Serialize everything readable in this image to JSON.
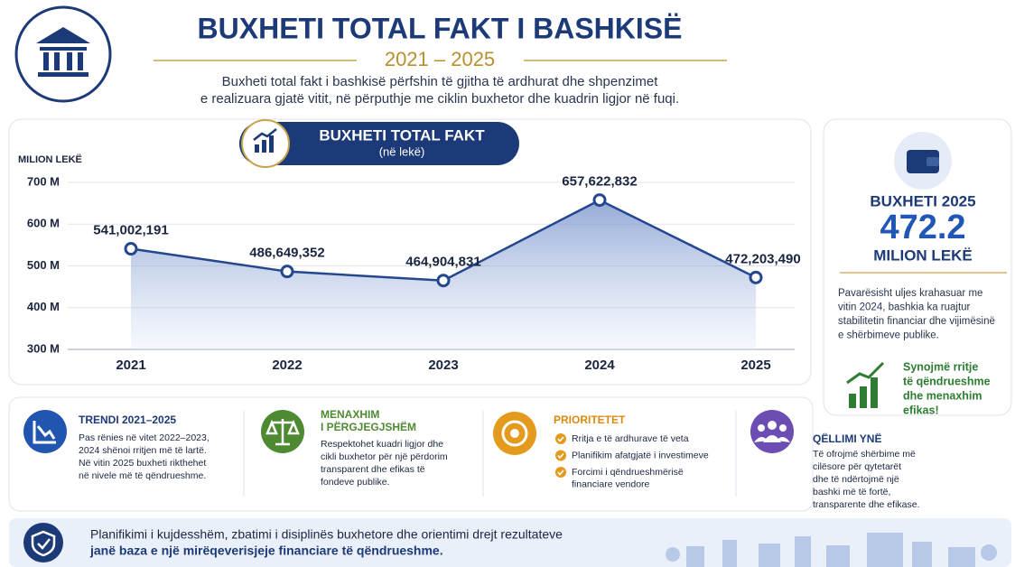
{
  "header": {
    "title": "BUXHETI TOTAL FAKT I BASHKISË",
    "years": "2021 – 2025",
    "description": [
      "Buxheti total fakt i bashkisë përfshin të gjitha të ardhurat dhe shpenzimet",
      "e realizuara gjatë vitit, në përputhje me ciklin buxhetor dhe kuadrin ligjor në fuqi."
    ]
  },
  "chart_data": {
    "type": "line",
    "title": "BUXHETI TOTAL FAKT",
    "subtitle": "(në lekë)",
    "y_label": "MILION LEKË",
    "categories": [
      "2021",
      "2022",
      "2023",
      "2024",
      "2025"
    ],
    "values": [
      541002191,
      486649352,
      464904831,
      657622832,
      472203490
    ],
    "value_labels": [
      "541,002,191",
      "486,649,352",
      "464,904,831",
      "657,622,832",
      "472,203,490"
    ],
    "color": "#24478f",
    "ylim": [
      300000000,
      700000000
    ],
    "yticks": [
      {
        "value": 300000000,
        "label": "300 M"
      },
      {
        "value": 400000000,
        "label": "400 M"
      },
      {
        "value": 500000000,
        "label": "500 M"
      },
      {
        "value": 600000000,
        "label": "600 M"
      },
      {
        "value": 700000000,
        "label": "700 M"
      }
    ],
    "grid": true
  },
  "sidebar": {
    "title": "BUXHETI 2025",
    "amount": "472.2",
    "unit": "MILION LEKË",
    "text": [
      "Pavarësisht uljes krahasuar me",
      "vitin 2024, bashkia ka ruajtur",
      "stabilitetin financiar dhe vijimësinë",
      "e shërbimeve publike."
    ],
    "highlight": [
      "Synojmë rritje",
      "të qëndrueshme",
      "dhe menaxhim",
      "efikas!"
    ]
  },
  "cards": [
    {
      "title": [
        "TRENDI 2021–2025"
      ],
      "text": [
        "Pas rënies në vitet 2022–2023,",
        "2024 shënoi rritjen më të lartë.",
        "Në vitin 2025 buxheti rikthehet",
        "në nivele më të qëndrueshme."
      ]
    },
    {
      "title": [
        "MENAXHIM",
        "I PËRGJEGJSHËM"
      ],
      "text": [
        "Respektohet kuadri ligjor dhe",
        "cikli buxhetor për një përdorim",
        "transparent dhe efikas të",
        "fondeve publike."
      ]
    },
    {
      "title": [
        "PRIORITETET"
      ],
      "items": [
        [
          "Rritja e të ardhurave të veta"
        ],
        [
          "Planifikim afatgjatë i investimeve"
        ],
        [
          "Forcimi i qëndrueshmërisë",
          "financiare vendore"
        ]
      ]
    },
    {
      "title": [
        "QËLLIMI YNË"
      ],
      "text": [
        "Të ofrojmë shërbime më",
        "cilësore për qytetarët",
        "dhe të ndërtojmë një",
        "bashki më të fortë,",
        "transparente dhe efikase."
      ]
    }
  ],
  "footer": {
    "text": [
      "Planifikimi i kujdesshëm, zbatimi i disiplinës buxhetore dhe orientimi drejt rezultateve",
      "janë baza e një mirëqeverisjeje financiare të qëndrueshme."
    ]
  }
}
